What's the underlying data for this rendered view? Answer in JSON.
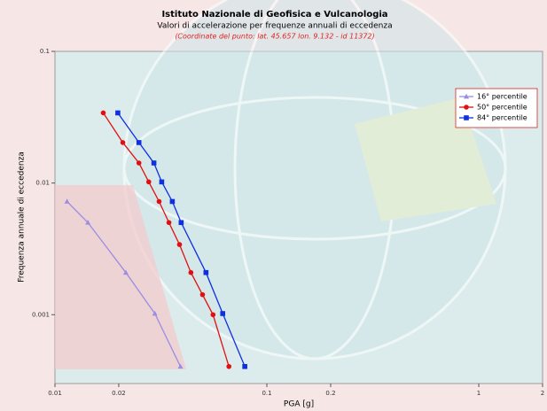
{
  "chart_data": {
    "type": "line",
    "title": "Istituto Nazionale di Geofisica e Vulcanologia",
    "subtitle": "Valori di accelerazione per frequenze annuali di eccedenza",
    "annotation": "(Coordinate del punto: lat. 45.657 lon. 9.132 - id 11372)",
    "x_label": "PGA [g]",
    "y_label": "Frequenza annuale di eccedenza",
    "x_log": true,
    "y_log": true,
    "xlim": [
      0.01,
      2
    ],
    "ylim": [
      0.0003,
      0.1
    ],
    "xticks": [
      0.01,
      0.02,
      0.1,
      0.2,
      1,
      2
    ],
    "yticks": [
      0.1,
      0.01,
      0.001
    ],
    "legend": "top-right",
    "series": [
      {
        "name": "16° percentile",
        "color": "#9a8ee0",
        "marker": "triangle",
        "x": [
          0.0114,
          0.0143,
          0.0216,
          0.0296,
          0.0391
        ],
        "values": [
          0.00724,
          0.00501,
          0.00209,
          0.00102,
          0.000404
        ]
      },
      {
        "name": "50° percentile",
        "color": "#e01010",
        "marker": "circle",
        "x": [
          0.0169,
          0.0209,
          0.0249,
          0.0277,
          0.031,
          0.0345,
          0.0387,
          0.0438,
          0.0497,
          0.0557,
          0.0662
        ],
        "values": [
          0.0341,
          0.0203,
          0.0142,
          0.0102,
          0.00724,
          0.00501,
          0.00341,
          0.00209,
          0.00142,
          0.001,
          0.000404
        ]
      },
      {
        "name": "84° percentile",
        "color": "#1030e0",
        "marker": "square",
        "x": [
          0.0198,
          0.0249,
          0.0293,
          0.0319,
          0.0358,
          0.0394,
          0.0516,
          0.0619,
          0.0787
        ],
        "values": [
          0.0341,
          0.0203,
          0.0142,
          0.0102,
          0.00724,
          0.00501,
          0.00209,
          0.00102,
          0.000404
        ]
      }
    ]
  }
}
